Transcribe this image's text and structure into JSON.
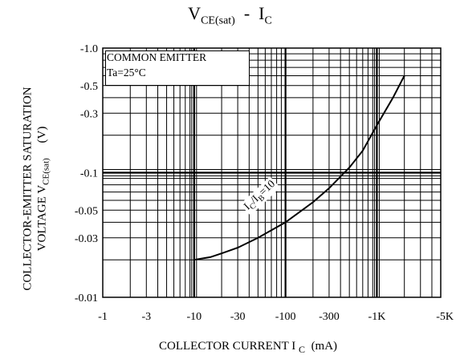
{
  "chart_data": {
    "type": "line",
    "title": {
      "main": "V",
      "main_sub": "CE(sat)",
      "sep": "  -  I",
      "tail_sub": "C"
    },
    "xlabel": {
      "main": "COLLECTOR CURRENT I",
      "sub": "C",
      "unit": "  (mA)"
    },
    "ylabel": {
      "line1": "COLLECTOR-EMITTER SATURATION",
      "line2_main": "VOLTAGE V",
      "line2_sub": "CE(sat)",
      "unit": "(V)"
    },
    "x_scale": "log",
    "y_scale": "log",
    "xlim": [
      -1,
      -5000
    ],
    "ylim": [
      -0.01,
      -1.0
    ],
    "x_ticks": [
      {
        "value": -1,
        "label": "-1"
      },
      {
        "value": -3,
        "label": "-3"
      },
      {
        "value": -10,
        "label": "-10"
      },
      {
        "value": -30,
        "label": "-30"
      },
      {
        "value": -100,
        "label": "-100"
      },
      {
        "value": -300,
        "label": "-300"
      },
      {
        "value": -1000,
        "label": "-1K"
      },
      {
        "value": -5000,
        "label": "-5K"
      }
    ],
    "y_ticks": [
      {
        "value": -1.0,
        "label": "-1.0"
      },
      {
        "value": -0.5,
        "label": "-0.5"
      },
      {
        "value": -0.3,
        "label": "-0.3"
      },
      {
        "value": -0.1,
        "label": "-0.1"
      },
      {
        "value": -0.05,
        "label": "-0.05"
      },
      {
        "value": -0.03,
        "label": "-0.03"
      },
      {
        "value": -0.01,
        "label": "-0.01"
      }
    ],
    "grid": true,
    "annotation": {
      "line1": "COMMON EMITTER",
      "line2": "Ta=25°C"
    },
    "series": [
      {
        "name": "IC/IB=10",
        "name_parts": {
          "a": "I",
          "a_sub": "C",
          "b": "/I",
          "b_sub": "B",
          "c": "=10"
        },
        "x": [
          -10,
          -15,
          -20,
          -30,
          -50,
          -100,
          -200,
          -300,
          -500,
          -700,
          -1000,
          -1500,
          -2000
        ],
        "y": [
          -0.02,
          -0.021,
          -0.0225,
          -0.025,
          -0.03,
          -0.04,
          -0.058,
          -0.075,
          -0.11,
          -0.15,
          -0.24,
          -0.4,
          -0.6
        ]
      }
    ],
    "line_color": "#000000",
    "grid_color": "#000000"
  }
}
